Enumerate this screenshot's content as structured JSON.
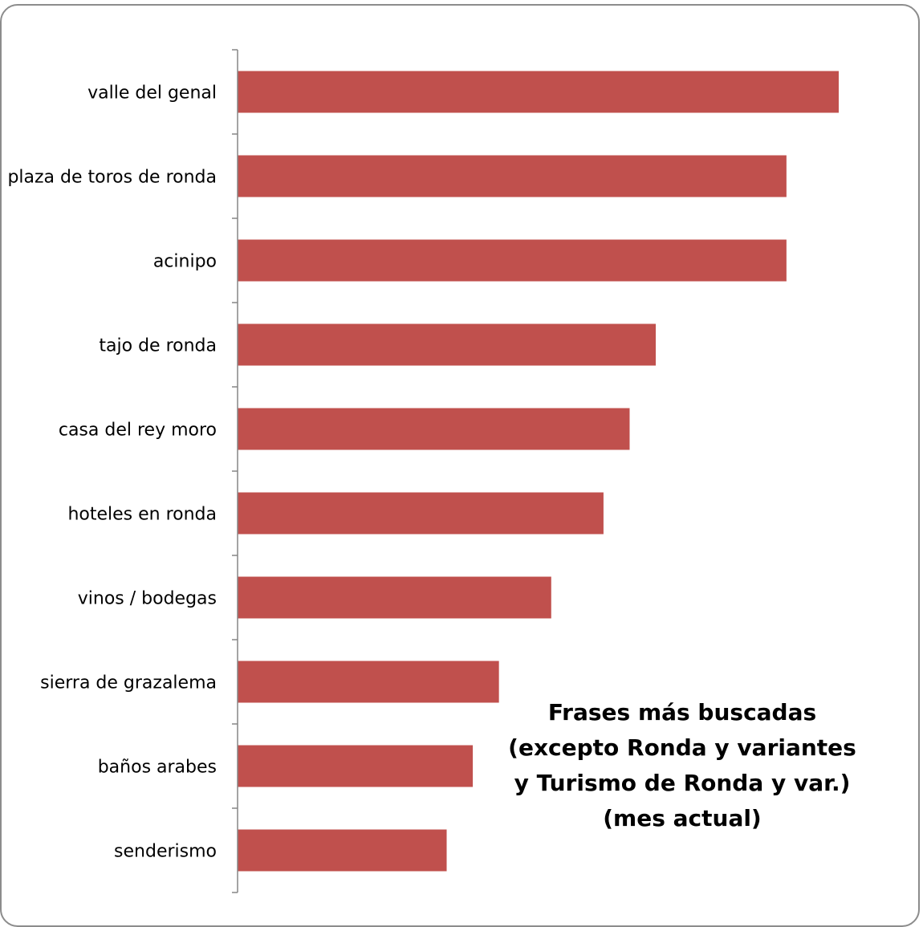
{
  "chart_data": {
    "type": "bar",
    "orientation": "horizontal",
    "categories": [
      "valle del genal",
      "plaza de toros de ronda",
      "acinipo",
      "tajo de ronda",
      "casa del rey moro",
      "hoteles en ronda",
      "vinos / bodegas",
      "sierra de grazalema",
      "baños arabes",
      "senderismo"
    ],
    "values": [
      23,
      21,
      21,
      16,
      15,
      14,
      12,
      10,
      9,
      8
    ],
    "title_lines": [
      "Frases más buscadas",
      "(excepto Ronda y variantes",
      "y Turismo de Ronda y var.)",
      "(mes actual)"
    ],
    "xlim": [
      0,
      26
    ],
    "grid": false,
    "legend": "none",
    "bar_color": "#C0504D",
    "axis_color": "#868686",
    "frame_color": "#8C8C8C"
  }
}
